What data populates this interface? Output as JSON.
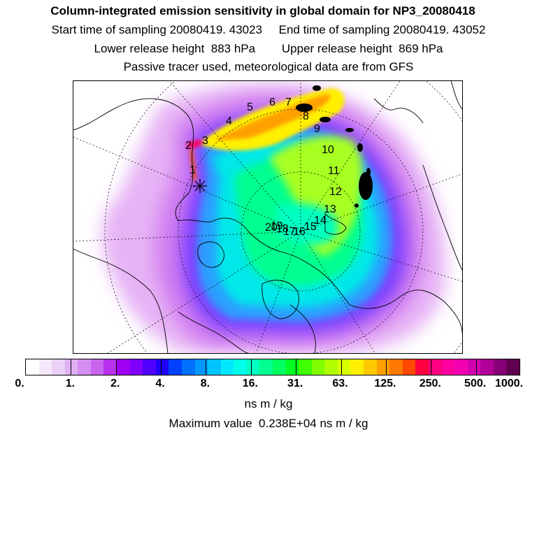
{
  "header": {
    "title": "Column-integrated emission sensitivity in global domain for NP3_20080418",
    "sampling_line": "Start time of sampling 20080419. 43023     End time of sampling 20080419. 43052",
    "release_line": "Lower release height  883 hPa        Upper release height  869 hPa",
    "tracer_line": "Passive tracer used, meteorological data are from GFS"
  },
  "map": {
    "projection": "north polar stereographic",
    "trajectory_labels": [
      "1",
      "2",
      "3",
      "4",
      "5",
      "6",
      "7",
      "8",
      "9",
      "10",
      "11",
      "12",
      "13",
      "14",
      "15",
      "16",
      "17",
      "18",
      "19",
      "20"
    ],
    "release_marker": "star"
  },
  "colorbar": {
    "labels": [
      "0.",
      "1.",
      "2.",
      "4.",
      "8.",
      "16.",
      "31.",
      "63.",
      "125.",
      "250.",
      "500.",
      "1000."
    ],
    "colors": [
      "#ffffff",
      "#f5e8fb",
      "#ebd0f7",
      "#e0b0f3",
      "#d58ef0",
      "#c864ee",
      "#b832ef",
      "#9f00f2",
      "#8000ff",
      "#5000ff",
      "#2000ff",
      "#0040ff",
      "#0070ff",
      "#0098ff",
      "#00c4ff",
      "#00e8ff",
      "#00ffe8",
      "#00ffc0",
      "#00ff90",
      "#00ff60",
      "#00ff20",
      "#40ff00",
      "#80ff00",
      "#b0ff00",
      "#d8ff00",
      "#fff000",
      "#ffc800",
      "#ffa000",
      "#ff7800",
      "#ff4800",
      "#ff0040",
      "#ff0080",
      "#ff00a0",
      "#f000b0",
      "#d000b0",
      "#b00098",
      "#880078",
      "#600050"
    ],
    "units": "ns m / kg"
  },
  "footer": {
    "max_value": "Maximum value  0.238E+04 ns m / kg"
  },
  "colors": {
    "background": "#ffffff",
    "coastline": "#000000"
  }
}
